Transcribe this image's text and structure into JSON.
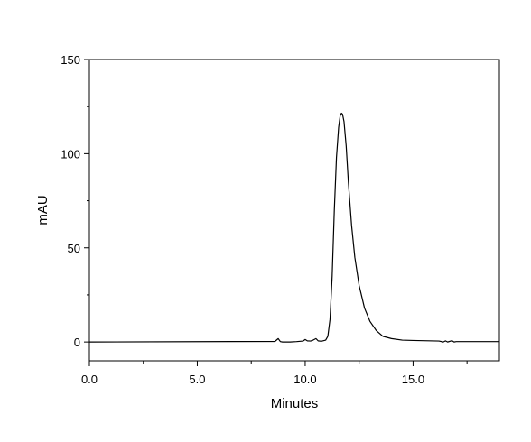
{
  "chart_data": {
    "type": "line",
    "title": "",
    "xlabel": "Minutes",
    "ylabel": "mAU",
    "xlim": [
      0,
      19
    ],
    "ylim": [
      -10,
      150
    ],
    "xticks": [
      0,
      5,
      10,
      15
    ],
    "xtick_labels": [
      "0.0",
      "5.0",
      "10.0",
      "15.0"
    ],
    "yticks": [
      0,
      50,
      100,
      150
    ],
    "ytick_labels": [
      "0",
      "50",
      "100",
      "150"
    ],
    "x_minor_step": 2.5,
    "y_minor_step": 25,
    "grid": false,
    "legend": "none",
    "series": [
      {
        "color": "#000000",
        "x": [
          0,
          8.6,
          8.75,
          8.8,
          8.85,
          8.95,
          9.3,
          9.6,
          9.9,
          10.0,
          10.1,
          10.25,
          10.35,
          10.5,
          10.6,
          10.75,
          10.95,
          11.05,
          11.15,
          11.25,
          11.35,
          11.45,
          11.55,
          11.62,
          11.68,
          11.73,
          11.8,
          11.9,
          12.0,
          12.15,
          12.3,
          12.5,
          12.75,
          13.0,
          13.3,
          13.6,
          14.0,
          14.5,
          15.0,
          16.2,
          16.4,
          16.5,
          16.6,
          16.8,
          16.9,
          17.0,
          19.0
        ],
        "y": [
          0,
          0.3,
          1.8,
          1.0,
          0.2,
          0.0,
          0.0,
          0.2,
          0.5,
          1.3,
          0.6,
          0.5,
          0.9,
          1.8,
          0.6,
          0.4,
          1.0,
          3.0,
          12.0,
          35.0,
          70.0,
          98.0,
          114.0,
          120.0,
          121.5,
          121.0,
          117.0,
          104.0,
          85.0,
          62.0,
          45.0,
          30.0,
          18.0,
          11.0,
          6.0,
          3.0,
          1.8,
          1.0,
          0.8,
          0.5,
          0.0,
          0.6,
          0.0,
          0.7,
          0.0,
          0.2,
          0.2
        ]
      }
    ]
  }
}
